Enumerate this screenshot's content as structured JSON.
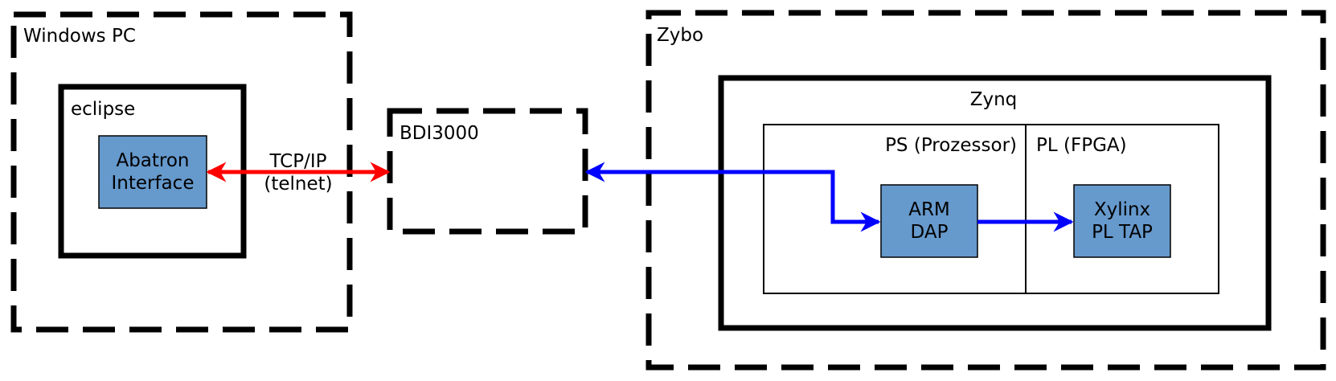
{
  "containers": {
    "windows_pc": {
      "label": "Windows PC"
    },
    "eclipse": {
      "label": "eclipse"
    },
    "bdi3000": {
      "label": "BDI3000"
    },
    "zybo": {
      "label": "Zybo"
    },
    "zynq": {
      "label": "Zynq"
    },
    "ps": {
      "label": "PS (Prozessor)"
    },
    "pl": {
      "label": "PL (FPGA)"
    }
  },
  "blocks": {
    "abatron": {
      "line1": "Abatron",
      "line2": "Interface"
    },
    "arm_dap": {
      "line1": "ARM",
      "line2": "DAP"
    },
    "xylinx": {
      "line1": "Xylinx",
      "line2": "PL TAP"
    }
  },
  "connections": {
    "tcpip": {
      "line1": "TCP/IP",
      "line2": "(telnet)",
      "color": "#ff0000"
    },
    "jtag": {
      "color": "#0000ff"
    }
  },
  "colors": {
    "block_fill": "#6699cc",
    "stroke": "#000000"
  }
}
